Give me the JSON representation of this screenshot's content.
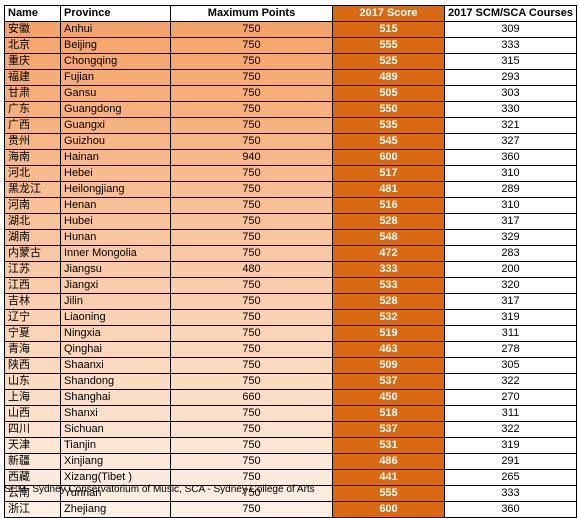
{
  "table": {
    "headers": {
      "name": "Name",
      "province": "Province",
      "max_points": "Maximum Points",
      "score": "2017 Score",
      "courses": "2017 SCM/SCA Courses"
    },
    "rows": [
      {
        "name": "安徽",
        "province": "Anhui",
        "max_points": "750",
        "score": "515",
        "courses": "309"
      },
      {
        "name": "北京",
        "province": "Beijing",
        "max_points": "750",
        "score": "555",
        "courses": "333"
      },
      {
        "name": "重庆",
        "province": "Chongqing",
        "max_points": "750",
        "score": "525",
        "courses": "315"
      },
      {
        "name": "福建",
        "province": "Fujian",
        "max_points": "750",
        "score": "489",
        "courses": "293"
      },
      {
        "name": "甘肃",
        "province": "Gansu",
        "max_points": "750",
        "score": "505",
        "courses": "303"
      },
      {
        "name": "广东",
        "province": "Guangdong",
        "max_points": "750",
        "score": "550",
        "courses": "330"
      },
      {
        "name": "广西",
        "province": "Guangxi",
        "max_points": "750",
        "score": "535",
        "courses": "321"
      },
      {
        "name": "贵州",
        "province": "Guizhou",
        "max_points": "750",
        "score": "545",
        "courses": "327"
      },
      {
        "name": "海南",
        "province": "Hainan",
        "max_points": "940",
        "score": "600",
        "courses": "360"
      },
      {
        "name": "河北",
        "province": "Hebei",
        "max_points": "750",
        "score": "517",
        "courses": "310"
      },
      {
        "name": "黑龙江",
        "province": "Heilongjiang",
        "max_points": "750",
        "score": "481",
        "courses": "289"
      },
      {
        "name": "河南",
        "province": "Henan",
        "max_points": "750",
        "score": "516",
        "courses": "310"
      },
      {
        "name": "湖北",
        "province": "Hubei",
        "max_points": "750",
        "score": "528",
        "courses": "317"
      },
      {
        "name": "湖南",
        "province": "Hunan",
        "max_points": "750",
        "score": "548",
        "courses": "329"
      },
      {
        "name": "内蒙古",
        "province": "Inner Mongolia",
        "max_points": "750",
        "score": "472",
        "courses": "283"
      },
      {
        "name": "江苏",
        "province": "Jiangsu",
        "max_points": "480",
        "score": "333",
        "courses": "200"
      },
      {
        "name": "江西",
        "province": "Jiangxi",
        "max_points": "750",
        "score": "533",
        "courses": "320"
      },
      {
        "name": "吉林",
        "province": "Jilin",
        "max_points": "750",
        "score": "528",
        "courses": "317"
      },
      {
        "name": "辽宁",
        "province": "Liaoning",
        "max_points": "750",
        "score": "532",
        "courses": "319"
      },
      {
        "name": "宁夏",
        "province": "Ningxia",
        "max_points": "750",
        "score": "519",
        "courses": "311"
      },
      {
        "name": "青海",
        "province": "Qinghai",
        "max_points": "750",
        "score": "463",
        "courses": "278"
      },
      {
        "name": "陕西",
        "province": "Shaanxi",
        "max_points": "750",
        "score": "509",
        "courses": "305"
      },
      {
        "name": "山东",
        "province": "Shandong",
        "max_points": "750",
        "score": "537",
        "courses": "322"
      },
      {
        "name": "上海",
        "province": "Shanghai",
        "max_points": "660",
        "score": "450",
        "courses": "270"
      },
      {
        "name": "山西",
        "province": "Shanxi",
        "max_points": "750",
        "score": "518",
        "courses": "311"
      },
      {
        "name": "四川",
        "province": "Sichuan",
        "max_points": "750",
        "score": "537",
        "courses": "322"
      },
      {
        "name": "天津",
        "province": "Tianjin",
        "max_points": "750",
        "score": "531",
        "courses": "319"
      },
      {
        "name": "新疆",
        "province": "Xinjiang",
        "max_points": "750",
        "score": "486",
        "courses": "291"
      },
      {
        "name": "西藏",
        "province": "Xizang(Tibet )",
        "max_points": "750",
        "score": "441",
        "courses": "265"
      },
      {
        "name": "云南",
        "province": "Yunnan",
        "max_points": "750",
        "score": "555",
        "courses": "333"
      },
      {
        "name": "浙江",
        "province": "Zhejiang",
        "max_points": "750",
        "score": "600",
        "courses": "360"
      }
    ]
  },
  "footnote": "SCM- Sydney Conservatorium of Music, SCA - Sydney College of Arts",
  "colors": {
    "score_column": "#d96a14",
    "gradient_start": "#f4a46a",
    "gradient_end": "#fdf0e4"
  }
}
